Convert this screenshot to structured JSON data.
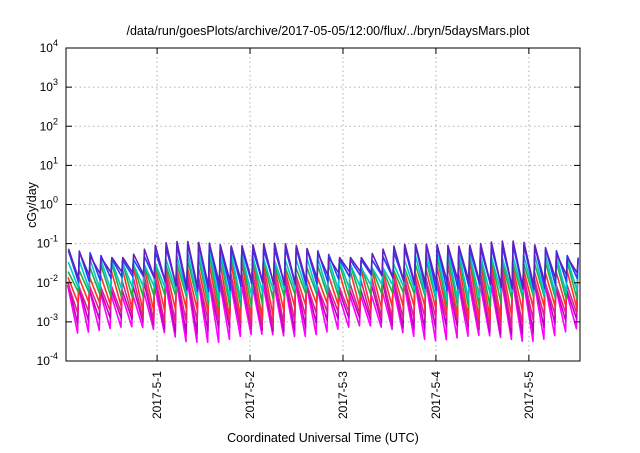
{
  "chart_data": {
    "type": "line",
    "title": "/data/run/goesPlots/archive/2017-05-05/12:00/flux/../bryn/5daysMars.plot",
    "xlabel": "Coordinated Universal Time (UTC)",
    "ylabel": "cGy/day",
    "yscale": "log",
    "ylim": [
      0.0001,
      10000
    ],
    "xlim": [
      "2017-04-30T00:00",
      "2017-05-05T12:00"
    ],
    "grid": true,
    "y_ticks": [
      {
        "base": "10",
        "exp": "-4"
      },
      {
        "base": "10",
        "exp": "-3"
      },
      {
        "base": "10",
        "exp": "-2"
      },
      {
        "base": "10",
        "exp": "-1"
      },
      {
        "base": "10",
        "exp": "0"
      },
      {
        "base": "10",
        "exp": "1"
      },
      {
        "base": "10",
        "exp": "2"
      },
      {
        "base": "10",
        "exp": "3"
      },
      {
        "base": "10",
        "exp": "4"
      }
    ],
    "x_ticks": [
      "2017-5-1",
      "2017-5-2",
      "2017-5-3",
      "2017-5-4",
      "2017-5-5"
    ],
    "sawtooth": {
      "period_hours": 2.8,
      "description_free": true
    },
    "series": [
      {
        "color": "#ff00ff",
        "peak": 0.009,
        "trough": 0.0005
      },
      {
        "color": "#c000c0",
        "peak": 0.012,
        "trough": 0.0008
      },
      {
        "color": "#e0208a",
        "peak": 0.015,
        "trough": 0.0012
      },
      {
        "color": "#ff3030",
        "peak": 0.025,
        "trough": 0.002
      },
      {
        "color": "#20b040",
        "peak": 0.035,
        "trough": 0.004
      },
      {
        "color": "#00c8c8",
        "peak": 0.045,
        "trough": 0.006
      },
      {
        "color": "#2040ff",
        "peak": 0.07,
        "trough": 0.01
      },
      {
        "color": "#6020c0",
        "peak": 0.08,
        "trough": 0.012
      }
    ]
  }
}
